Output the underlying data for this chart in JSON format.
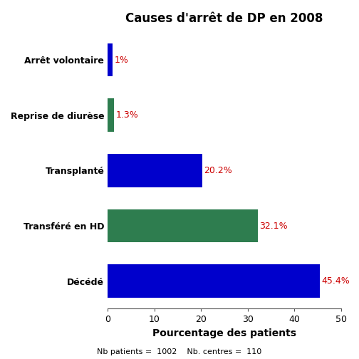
{
  "title": "Causes d'arrêt de DP en 2008",
  "categories": [
    "Décédé",
    "Transféré en HD",
    "Transplanté",
    "Reprise de diurèse",
    "Arrêt volontaire"
  ],
  "values": [
    45.4,
    32.1,
    20.2,
    1.3,
    1.0
  ],
  "labels": [
    "45.4%",
    "32.1%",
    "20.2%",
    "1.3%",
    "1%"
  ],
  "colors": [
    "#0000cc",
    "#2e7d4f",
    "#0000cc",
    "#2e7d4f",
    "#0000cc"
  ],
  "xlabel": "Pourcentage des patients",
  "footnote": "Nb patients =  1002    Nb. centres =  110",
  "xlim": [
    0,
    50
  ],
  "xticks": [
    0,
    10,
    20,
    30,
    40,
    50
  ],
  "bar_height": 0.6,
  "label_color": "#cc0000",
  "label_fontsize": 9,
  "title_fontsize": 12,
  "xlabel_fontsize": 10,
  "ytick_fontsize": 9,
  "footnote_fontsize": 8,
  "background_color": "#ffffff"
}
